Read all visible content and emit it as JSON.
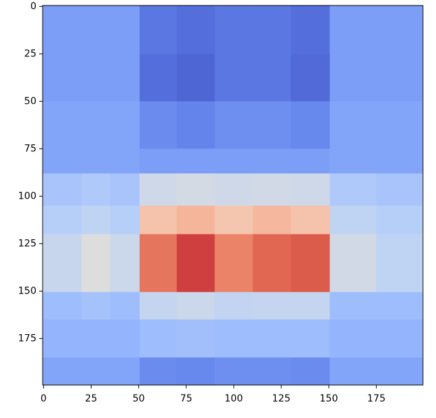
{
  "chart_data": {
    "type": "heatmap",
    "cmap": "coolwarm",
    "x_edges": [
      -0.5,
      20,
      35,
      50.5,
      70,
      90,
      110,
      130,
      150.5,
      175,
      199.5
    ],
    "y_edges": [
      -0.5,
      25,
      50,
      75,
      88,
      105,
      120,
      150.5,
      165,
      185,
      199.5
    ],
    "values": [
      [
        0.2,
        0.2,
        0.2,
        0.1,
        0.08,
        0.1,
        0.1,
        0.08,
        0.2,
        0.2
      ],
      [
        0.2,
        0.2,
        0.2,
        0.08,
        0.06,
        0.1,
        0.1,
        0.07,
        0.2,
        0.2
      ],
      [
        0.22,
        0.22,
        0.22,
        0.15,
        0.13,
        0.16,
        0.16,
        0.14,
        0.22,
        0.22
      ],
      [
        0.22,
        0.22,
        0.22,
        0.2,
        0.2,
        0.2,
        0.2,
        0.2,
        0.22,
        0.22
      ],
      [
        0.33,
        0.35,
        0.33,
        0.45,
        0.47,
        0.45,
        0.46,
        0.45,
        0.35,
        0.33
      ],
      [
        0.37,
        0.4,
        0.37,
        0.63,
        0.67,
        0.62,
        0.66,
        0.63,
        0.4,
        0.37
      ],
      [
        0.43,
        0.5,
        0.44,
        0.83,
        0.92,
        0.8,
        0.86,
        0.88,
        0.46,
        0.4
      ],
      [
        0.3,
        0.32,
        0.3,
        0.42,
        0.44,
        0.41,
        0.42,
        0.42,
        0.3,
        0.3
      ],
      [
        0.27,
        0.27,
        0.27,
        0.3,
        0.31,
        0.3,
        0.3,
        0.3,
        0.27,
        0.27
      ],
      [
        0.22,
        0.22,
        0.22,
        0.15,
        0.14,
        0.16,
        0.16,
        0.15,
        0.22,
        0.22
      ]
    ],
    "xlim": [
      -0.5,
      199.5
    ],
    "ylim": [
      199.5,
      -0.5
    ],
    "xticks": [
      0,
      25,
      50,
      75,
      100,
      125,
      150,
      175
    ],
    "yticks": [
      0,
      25,
      50,
      75,
      100,
      125,
      150,
      175
    ]
  }
}
